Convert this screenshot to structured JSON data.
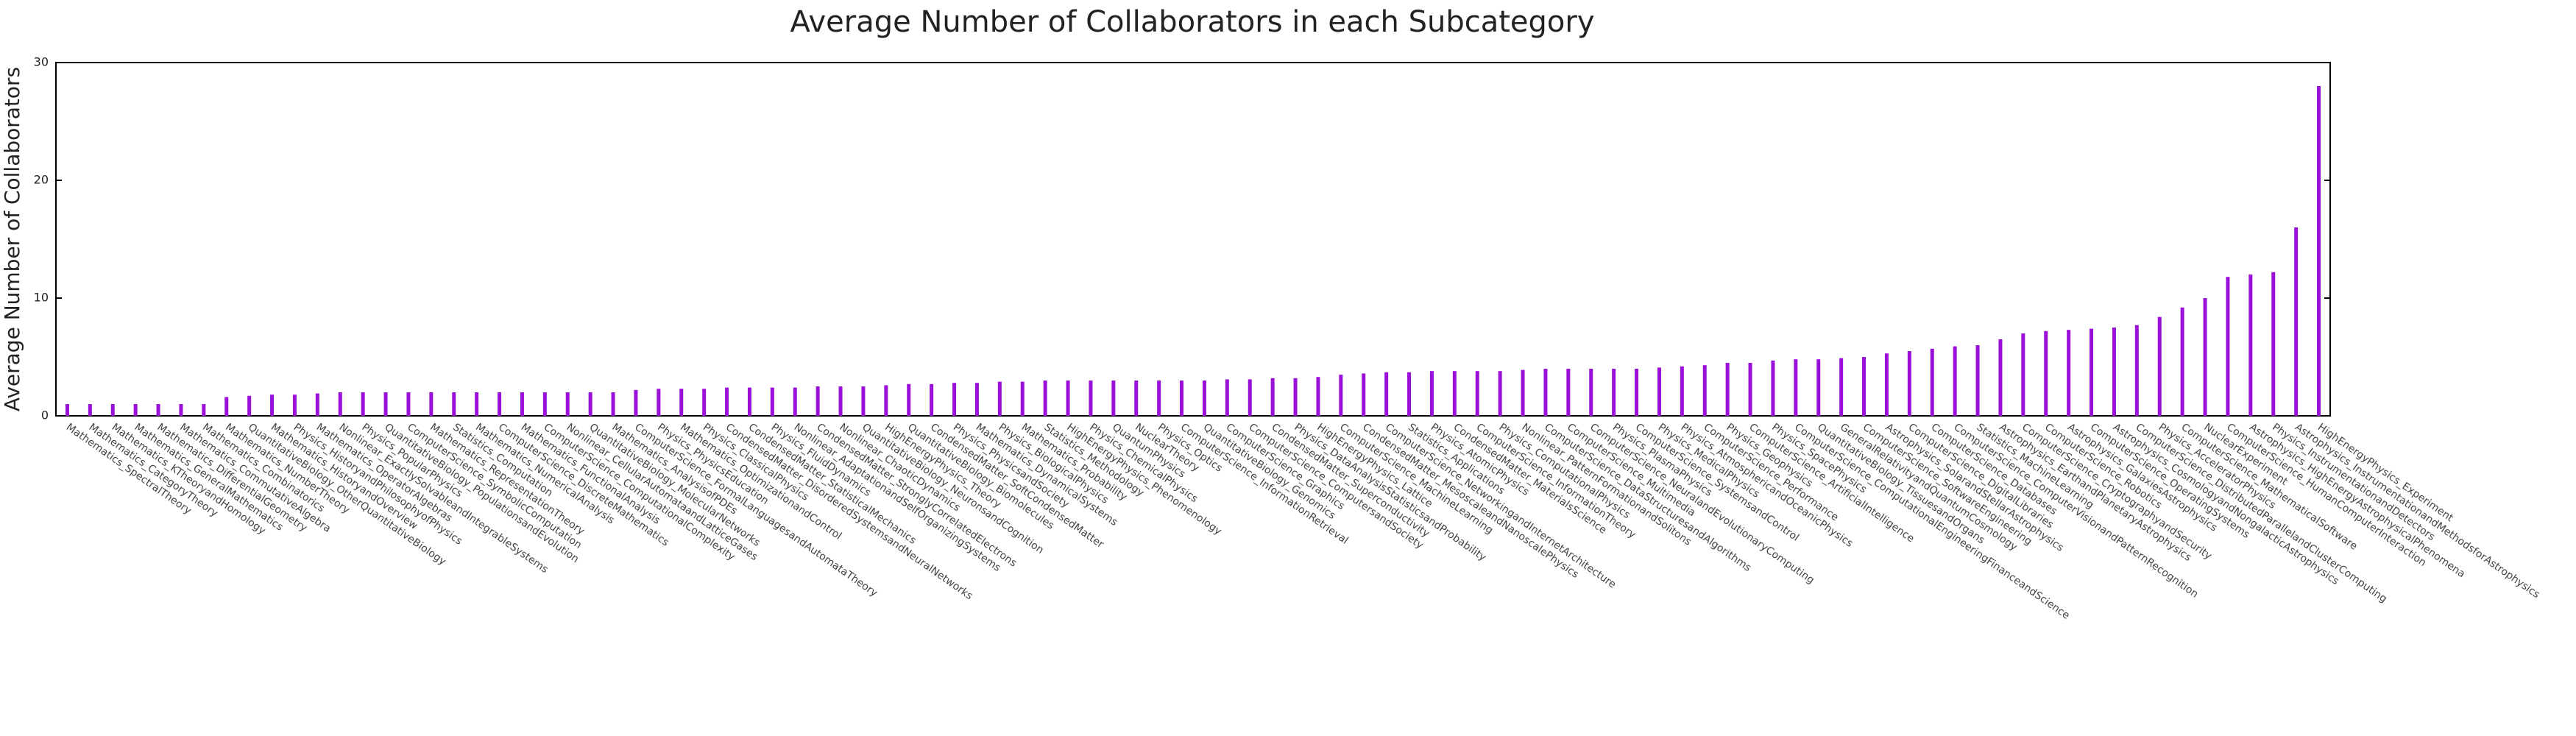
{
  "chart_data": {
    "type": "bar",
    "title": "Average Number of Collaborators in each Subcategory",
    "ylabel": "Average Number of Collaborators",
    "color": "#9b10d8",
    "ylim": [
      0,
      30
    ],
    "yticks": [
      0,
      10,
      20,
      30
    ],
    "categories": [
      "Mathematics_SpectralTheory",
      "Mathematics_CategoryTheory",
      "Mathematics_KTheoryandHomology",
      "Mathematics_GeneralMathematics",
      "Mathematics_DifferentialGeometry",
      "Mathematics_CommutativeAlgebra",
      "Mathematics_Combinatorics",
      "Mathematics_NumberTheory",
      "QuantitativeBiology_OtherQuantitativeBiology",
      "Mathematics_HistoryandOverview",
      "Physics_HistoryandPhilosophyofPhysics",
      "Mathematics_OperatorAlgebras",
      "Nonlinear_ExactlySolvableandIntegrableSystems",
      "Physics_PopularPhysics",
      "QuantitativeBiology_PopulationsandEvolution",
      "ComputerScience_SymbolicComputation",
      "Mathematics_RepresentationTheory",
      "Statistics_Computation",
      "Mathematics_NumericalAnalysis",
      "ComputerScience_DiscreteMathematics",
      "Mathematics_FunctionalAnalysis",
      "ComputerScience_ComputationalComplexity",
      "Nonlinear_CellularAutomataandLatticeGases",
      "QuantitativeBiology_MolecularNetworks",
      "Mathematics_AnalysisofPDEs",
      "ComputerScience_FormalLanguagesandAutomataTheory",
      "Physics_PhysicsEducation",
      "Mathematics_OptimizationandControl",
      "Physics_ClassicalPhysics",
      "CondensedMatter_DisorderedSystemsandNeuralNetworks",
      "CondensedMatter_StatisticalMechanics",
      "Physics_FluidDynamics",
      "Nonlinear_AdaptationandSelfOrganizingSystems",
      "CondensedMatter_StronglyCorrelatedElectrons",
      "Nonlinear_ChaoticDynamics",
      "QuantitativeBiology_NeuronsandCognition",
      "HighEnergyPhysics_Theory",
      "QuantitativeBiology_Biomolecules",
      "CondensedMatter_SoftCondensedMatter",
      "Physics_PhysicsandSociety",
      "Mathematics_DynamicalSystems",
      "Physics_BiologicalPhysics",
      "Mathematics_Probability",
      "Statistics_Methodology",
      "HighEnergyPhysics_Phenomenology",
      "Physics_ChemicalPhysics",
      "QuantumPhysics",
      "NuclearTheory",
      "Physics_Optics",
      "ComputerScience_InformationRetrieval",
      "QuantitativeBiology_Genomics",
      "ComputerScience_Graphics",
      "ComputerScience_ComputersandSociety",
      "CondensedMatter_Superconductivity",
      "Physics_DataAnalysisStatisticsandProbability",
      "HighEnergyPhysics_Lattice",
      "ComputerScience_MachineLearning",
      "CondensedMatter_MesoscaleandNanoscalePhysics",
      "ComputerScience_NetworkingandInternetArchitecture",
      "Statistics_Applications",
      "Physics_AtomicPhysics",
      "CondensedMatter_MaterialsScience",
      "ComputerScience_InformationTheory",
      "Physics_ComputationalPhysics",
      "Nonlinear_PatternFormationandSolitons",
      "ComputerScience_DataStructuresandAlgorithms",
      "ComputerScience_Multimedia",
      "ComputerScience_NeuralandEvolutionaryComputing",
      "Physics_PlasmaPhysics",
      "ComputerScience_SystemsandControl",
      "Physics_MedicalPhysics",
      "Physics_AtmosphericandOceanicPhysics",
      "ComputerScience_Performance",
      "Physics_Geophysics",
      "ComputerScience_ArtificialIntelligence",
      "Physics_SpacePhysics",
      "ComputerScience_ComputationalEngineeringFinanceandScience",
      "QuantitativeBiology_TissuesandOrgans",
      "GeneralRelativityandQuantumCosmology",
      "ComputerScience_SoftwareEngineering",
      "Astrophysics_SolarandStellarAstrophysics",
      "ComputerScience_DigitalLibraries",
      "ComputerScience_Databases",
      "ComputerScience_ComputerVisionandPatternRecognition",
      "Statistics_MachineLearning",
      "Astrophysics_EarthandPlanetaryAstrophysics",
      "ComputerScience_CryptographyandSecurity",
      "ComputerScience_Robotics",
      "Astrophysics_GalaxiesAstrophysics",
      "ComputerScience_OperatingSystems",
      "Astrophysics_CosmologyandNongalacticAstrophysics",
      "ComputerScience_DistributedParallelandClusterComputing",
      "Physics_AcceleratorPhysics",
      "ComputerScience_MathematicalSoftware",
      "NuclearExperiment",
      "ComputerScience_HumanComputerInteraction",
      "Astrophysics_HighEnergyAstrophysicalPhenomena",
      "Physics_InstrumentationandDetectors",
      "Astrophysics_InstrumentationandMethodsforAstrophysics",
      "HighEnergyPhysics_Experiment"
    ],
    "values": [
      1,
      1,
      1,
      1,
      1,
      1,
      1,
      1.6,
      1.7,
      1.8,
      1.8,
      1.9,
      2,
      2,
      2,
      2,
      2,
      2,
      2,
      2,
      2,
      2,
      2,
      2,
      2,
      2.2,
      2.3,
      2.3,
      2.3,
      2.4,
      2.4,
      2.4,
      2.4,
      2.5,
      2.5,
      2.5,
      2.6,
      2.7,
      2.7,
      2.8,
      2.8,
      2.9,
      2.9,
      3,
      3,
      3,
      3,
      3,
      3,
      3,
      3,
      3.1,
      3.1,
      3.2,
      3.2,
      3.3,
      3.5,
      3.6,
      3.7,
      3.7,
      3.8,
      3.8,
      3.8,
      3.8,
      3.9,
      4,
      4,
      4,
      4,
      4,
      4.1,
      4.2,
      4.3,
      4.5,
      4.5,
      4.7,
      4.8,
      4.8,
      4.9,
      5,
      5.3,
      5.5,
      5.7,
      5.9,
      6,
      6.5,
      7,
      7.2,
      7.3,
      7.4,
      7.5,
      7.7,
      8.4,
      9.2,
      10,
      11.8,
      12,
      12.2,
      16,
      28
    ]
  }
}
